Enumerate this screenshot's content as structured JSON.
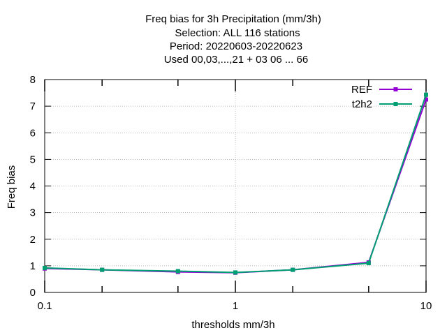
{
  "chart_data": {
    "type": "line",
    "title_lines": [
      "Freq bias  for 3h Precipitation (mm/3h)",
      "Selection: ALL    116 stations",
      "Period: 20220603-20220623",
      "Used  00,03,...,21  + 03 06 ... 66"
    ],
    "xlabel": "thresholds mm/3h",
    "ylabel": "Freq bias",
    "x_scale": "log",
    "xlim": [
      0.1,
      10
    ],
    "ylim": [
      0,
      8
    ],
    "x_ticks": [
      {
        "value": 0.1,
        "label": "0.1"
      },
      {
        "value": 1,
        "label": "1"
      },
      {
        "value": 10,
        "label": "10"
      }
    ],
    "x_minor_ticks": [
      0.2,
      0.5,
      2,
      5
    ],
    "y_ticks": [
      {
        "value": 0,
        "label": "0"
      },
      {
        "value": 1,
        "label": "1"
      },
      {
        "value": 2,
        "label": "2"
      },
      {
        "value": 3,
        "label": "3"
      },
      {
        "value": 4,
        "label": "4"
      },
      {
        "value": 5,
        "label": "5"
      },
      {
        "value": 6,
        "label": "6"
      },
      {
        "value": 7,
        "label": "7"
      },
      {
        "value": 8,
        "label": "8"
      }
    ],
    "grid": true,
    "legend_position": "top-right",
    "x": [
      0.1,
      0.2,
      0.5,
      1,
      2,
      5,
      10
    ],
    "series": [
      {
        "name": "REF",
        "color": "#9400d3",
        "values": [
          0.9,
          0.85,
          0.77,
          0.74,
          0.85,
          1.13,
          7.25
        ]
      },
      {
        "name": "t2h2",
        "color": "#009e73",
        "values": [
          0.92,
          0.85,
          0.8,
          0.75,
          0.85,
          1.1,
          7.43
        ]
      }
    ]
  }
}
